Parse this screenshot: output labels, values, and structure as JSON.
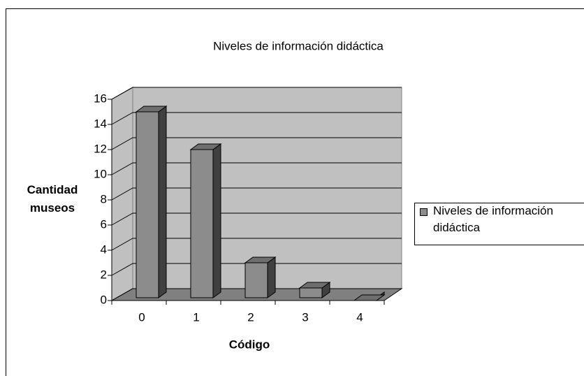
{
  "chart_data": {
    "type": "bar",
    "title": "Niveles de información didáctica",
    "x_label": "Código",
    "y_label": "Cantidad museos",
    "categories": [
      "0",
      "1",
      "2",
      "3",
      "4"
    ],
    "series": [
      {
        "name": "Niveles de información didáctica",
        "color": "#8c8c8c",
        "values": [
          15,
          12,
          3,
          1,
          0
        ]
      }
    ],
    "ylim": [
      0,
      16
    ],
    "yticks": [
      0,
      2,
      4,
      6,
      8,
      10,
      12,
      14,
      16
    ],
    "grid": true,
    "legend": "right"
  }
}
